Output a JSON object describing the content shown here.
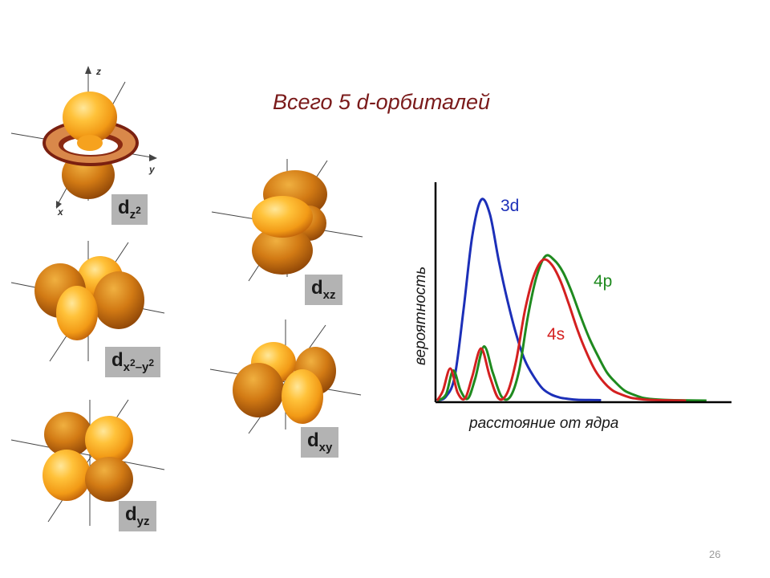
{
  "slide": {
    "title": "Всего 5 d-орбиталей",
    "page_number": "26"
  },
  "axes": {
    "z": "z",
    "y": "y",
    "x": "x"
  },
  "orbitals": [
    {
      "id": "dz2",
      "base": "d",
      "sub": "z",
      "sup": "2",
      "sub2": "",
      "sup2": ""
    },
    {
      "id": "dx2y2",
      "base": "d",
      "sub": "x",
      "sup": "2",
      "sub2": "–y",
      "sup2": "2"
    },
    {
      "id": "dyz",
      "base": "d",
      "sub": "yz",
      "sup": "",
      "sub2": "",
      "sup2": ""
    },
    {
      "id": "dxz",
      "base": "d",
      "sub": "xz",
      "sup": "",
      "sub2": "",
      "sup2": ""
    },
    {
      "id": "dxy",
      "base": "d",
      "sub": "xy",
      "sup": "",
      "sub2": "",
      "sup2": ""
    }
  ],
  "colors": {
    "lobe_light": "#ffc23a",
    "lobe_dark": "#c0620a",
    "label_bg": "#b3b3b3",
    "title": "#7a1a1a",
    "series_3d": "#1c2fb8",
    "series_4s": "#d42020",
    "series_4p": "#1f8a1f"
  },
  "chart_data": {
    "type": "line",
    "xlabel": "расстояние от ядра",
    "ylabel": "вероятность",
    "xlim": [
      0,
      10
    ],
    "ylim": [
      0,
      1
    ],
    "grid": false,
    "legend": "inline labels",
    "series": [
      {
        "name": "3d",
        "color": "#1c2fb8",
        "x": [
          0.0,
          0.3,
          0.6,
          0.9,
          1.2,
          1.5,
          1.8,
          2.1,
          2.4,
          2.7,
          3.0,
          3.3,
          3.6,
          3.9,
          4.2,
          4.5,
          4.8,
          5.2,
          5.6
        ],
        "values": [
          0.0,
          0.02,
          0.12,
          0.45,
          0.82,
          1.0,
          0.93,
          0.7,
          0.5,
          0.33,
          0.2,
          0.12,
          0.06,
          0.03,
          0.015,
          0.008,
          0.004,
          0.003,
          0.002
        ]
      },
      {
        "name": "4s",
        "color": "#d42020",
        "x": [
          0.0,
          0.2,
          0.45,
          0.7,
          0.95,
          1.2,
          1.5,
          1.8,
          2.1,
          2.4,
          2.7,
          3.0,
          3.3,
          3.6,
          3.9,
          4.2,
          4.5,
          4.8,
          5.1,
          5.4,
          5.7,
          6.0,
          6.3,
          6.6,
          6.9,
          7.2,
          7.6,
          8.0,
          8.5
        ],
        "values": [
          0.0,
          0.05,
          0.16,
          0.04,
          0.01,
          0.12,
          0.26,
          0.12,
          0.01,
          0.04,
          0.2,
          0.45,
          0.62,
          0.7,
          0.68,
          0.6,
          0.48,
          0.35,
          0.24,
          0.15,
          0.09,
          0.05,
          0.03,
          0.015,
          0.008,
          0.004,
          0.002,
          0.001,
          0.0
        ]
      },
      {
        "name": "4p",
        "color": "#1f8a1f",
        "x": [
          0.0,
          0.3,
          0.55,
          0.8,
          1.05,
          1.3,
          1.6,
          1.9,
          2.2,
          2.5,
          2.8,
          3.1,
          3.4,
          3.7,
          4.0,
          4.3,
          4.6,
          4.9,
          5.2,
          5.5,
          5.8,
          6.1,
          6.4,
          6.7,
          7.0,
          7.3,
          7.7,
          8.1,
          8.6,
          9.2
        ],
        "values": [
          0.0,
          0.03,
          0.15,
          0.05,
          0.01,
          0.11,
          0.27,
          0.14,
          0.02,
          0.02,
          0.15,
          0.42,
          0.62,
          0.72,
          0.7,
          0.64,
          0.54,
          0.42,
          0.31,
          0.22,
          0.14,
          0.09,
          0.05,
          0.03,
          0.015,
          0.008,
          0.004,
          0.002,
          0.001,
          0.0
        ]
      }
    ]
  }
}
